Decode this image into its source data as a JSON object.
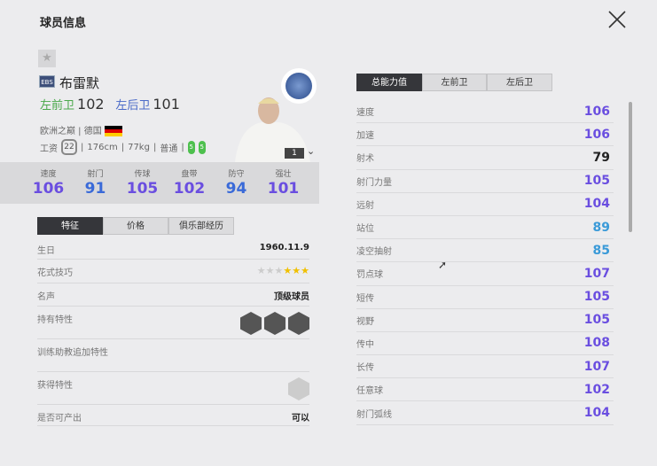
{
  "title": "球员信息",
  "player": {
    "badge": "EBS",
    "name": "布雷默",
    "positions": [
      {
        "label": "左前卫",
        "value": "102",
        "color": "#4aa84a"
      },
      {
        "label": "左后卫",
        "value": "101",
        "color": "#4a6ac8"
      }
    ],
    "season": "欧洲之巅",
    "country": "德国",
    "wage_label": "工资",
    "wage": "22",
    "height": "176cm",
    "weight": "77kg",
    "body": "普通",
    "left_foot": "5",
    "right_foot": "5",
    "level": "1"
  },
  "stats": [
    {
      "label": "速度",
      "value": "106",
      "color": "#6a4ee0"
    },
    {
      "label": "射门",
      "value": "91",
      "color": "#3a6ad8"
    },
    {
      "label": "传球",
      "value": "105",
      "color": "#6a4ee0"
    },
    {
      "label": "盘带",
      "value": "102",
      "color": "#6a4ee0"
    },
    {
      "label": "防守",
      "value": "94",
      "color": "#3a6ad8"
    },
    {
      "label": "强壮",
      "value": "101",
      "color": "#6a4ee0"
    }
  ],
  "left_tabs": [
    "特征",
    "价格",
    "俱乐部经历"
  ],
  "features": {
    "birthday_label": "生日",
    "birthday": "1960.11.9",
    "skill_label": "花式技巧",
    "skill_stars": 3,
    "skill_max": 6,
    "fame_label": "名声",
    "fame": "顶级球员",
    "traits_label": "持有特性",
    "traits": [
      "trait-icon-1",
      "trait-icon-2",
      "trait-icon-3"
    ],
    "coach_label": "训练助教追加特性",
    "acquired_label": "获得特性",
    "produce_label": "是否可产出",
    "produce": "可以"
  },
  "right_tabs": [
    "总能力值",
    "左前卫",
    "左后卫"
  ],
  "attributes": [
    {
      "label": "速度",
      "value": "106",
      "color": "#6a4ee0"
    },
    {
      "label": "加速",
      "value": "106",
      "color": "#6a4ee0"
    },
    {
      "label": "射术",
      "value": "79",
      "color": "#222222"
    },
    {
      "label": "射门力量",
      "value": "105",
      "color": "#6a4ee0"
    },
    {
      "label": "远射",
      "value": "104",
      "color": "#6a4ee0"
    },
    {
      "label": "站位",
      "value": "89",
      "color": "#3a9ad8"
    },
    {
      "label": "凌空抽射",
      "value": "85",
      "color": "#3a9ad8"
    },
    {
      "label": "罚点球",
      "value": "107",
      "color": "#6a4ee0"
    },
    {
      "label": "短传",
      "value": "105",
      "color": "#6a4ee0"
    },
    {
      "label": "视野",
      "value": "105",
      "color": "#6a4ee0"
    },
    {
      "label": "传中",
      "value": "108",
      "color": "#6a4ee0"
    },
    {
      "label": "长传",
      "value": "107",
      "color": "#6a4ee0"
    },
    {
      "label": "任意球",
      "value": "102",
      "color": "#6a4ee0"
    },
    {
      "label": "射门弧线",
      "value": "104",
      "color": "#6a4ee0"
    }
  ]
}
